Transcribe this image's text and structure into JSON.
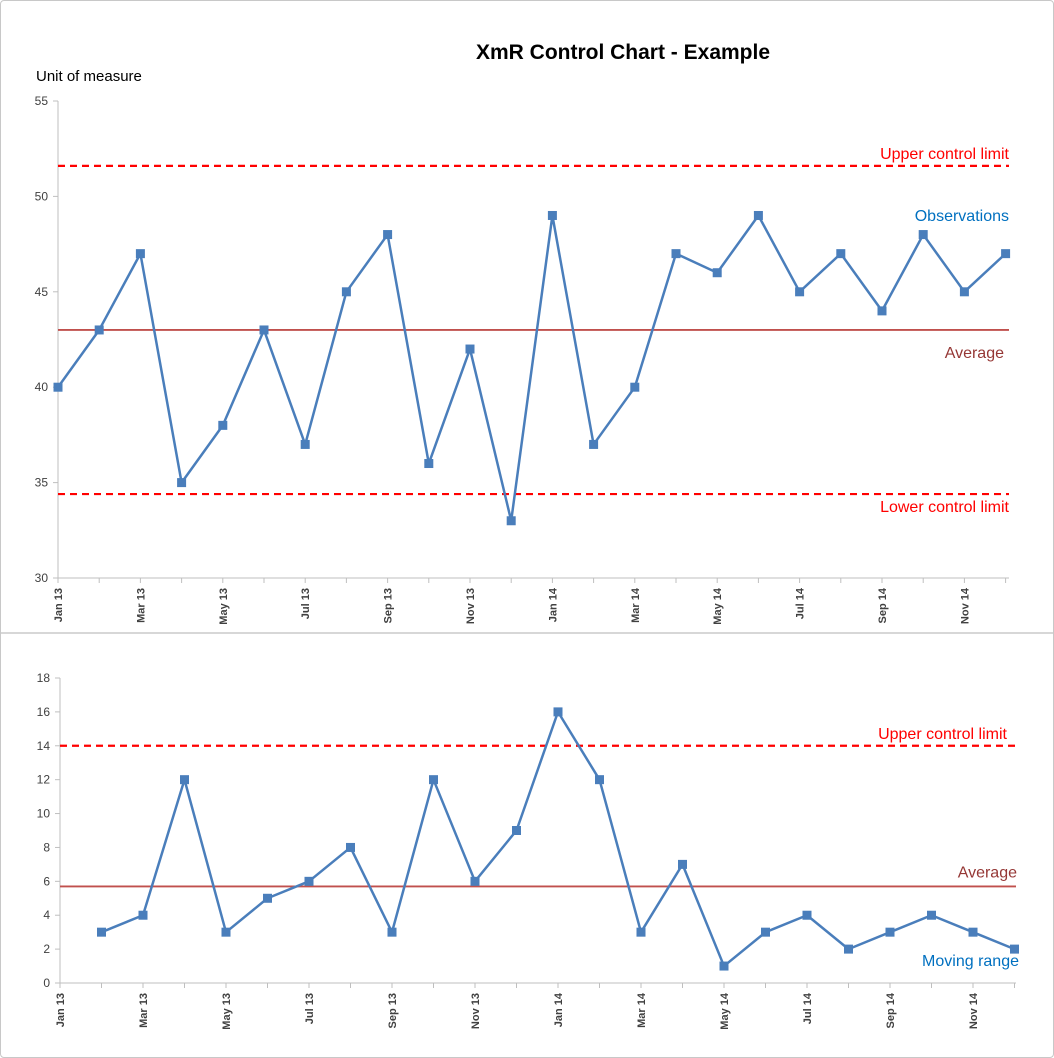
{
  "chart": {
    "title": "XmR Control Chart - Example",
    "unit_label": "Unit of measure"
  },
  "colors": {
    "series": "#4a7ebb",
    "limit": "#ff0000",
    "average": "#c0504d",
    "average_label": "#953735",
    "observation_label": "#0070c0",
    "divider": "#bfbfbf",
    "axis": "#bfbfbf"
  },
  "chart_data": [
    {
      "type": "line",
      "title": "XmR Control Chart - Example",
      "ylabel": "Unit of measure",
      "xlabel": "",
      "categories": [
        "Jan 13",
        "Feb 13",
        "Mar 13",
        "Apr 13",
        "May 13",
        "Jun 13",
        "Jul 13",
        "Aug 13",
        "Sep 13",
        "Oct 13",
        "Nov 13",
        "Dec 13",
        "Jan 14",
        "Feb 14",
        "Mar 14",
        "Apr 14",
        "May 14",
        "Jun 14",
        "Jul 14",
        "Aug 14",
        "Sep 14",
        "Oct 14",
        "Nov 14",
        "Dec 14"
      ],
      "tick_labels": [
        "Jan 13",
        "",
        "Mar 13",
        "",
        "May 13",
        "",
        "Jul 13",
        "",
        "Sep 13",
        "",
        "Nov 13",
        "",
        "Jan 14",
        "",
        "Mar 14",
        "",
        "May 14",
        "",
        "Jul 14",
        "",
        "Sep 14",
        "",
        "Nov 14",
        ""
      ],
      "series": [
        {
          "name": "Observations",
          "values": [
            40,
            43,
            47,
            35,
            38,
            43,
            37,
            45,
            48,
            36,
            42,
            33,
            49,
            37,
            40,
            47,
            46,
            49,
            45,
            47,
            44,
            48,
            45,
            47
          ]
        }
      ],
      "reference_lines": [
        {
          "name": "Upper control limit",
          "value": 51.6,
          "style": "dashed"
        },
        {
          "name": "Average",
          "value": 43.0,
          "style": "solid"
        },
        {
          "name": "Lower control limit",
          "value": 34.4,
          "style": "dashed"
        }
      ],
      "ylim": [
        30,
        55
      ],
      "yticks": [
        30,
        35,
        40,
        45,
        50,
        55
      ],
      "grid": false
    },
    {
      "type": "line",
      "title": "",
      "ylabel": "",
      "xlabel": "",
      "categories": [
        "Jan 13",
        "Feb 13",
        "Mar 13",
        "Apr 13",
        "May 13",
        "Jun 13",
        "Jul 13",
        "Aug 13",
        "Sep 13",
        "Oct 13",
        "Nov 13",
        "Dec 13",
        "Jan 14",
        "Feb 14",
        "Mar 14",
        "Apr 14",
        "May 14",
        "Jun 14",
        "Jul 14",
        "Aug 14",
        "Sep 14",
        "Oct 14",
        "Nov 14",
        "Dec 14"
      ],
      "tick_labels": [
        "Jan 13",
        "",
        "Mar 13",
        "",
        "May 13",
        "",
        "Jul 13",
        "",
        "Sep 13",
        "",
        "Nov 13",
        "",
        "Jan 14",
        "",
        "Mar 14",
        "",
        "May 14",
        "",
        "Jul 14",
        "",
        "Sep 14",
        "",
        "Nov 14",
        ""
      ],
      "series": [
        {
          "name": "Moving range",
          "values": [
            null,
            3,
            4,
            12,
            3,
            5,
            6,
            8,
            3,
            12,
            6,
            9,
            16,
            12,
            3,
            7,
            1,
            3,
            4,
            2,
            3,
            4,
            3,
            2
          ]
        }
      ],
      "reference_lines": [
        {
          "name": "Upper control limit",
          "value": 14.0,
          "style": "dashed"
        },
        {
          "name": "Average",
          "value": 5.7,
          "style": "solid"
        }
      ],
      "ylim": [
        0,
        18
      ],
      "yticks": [
        0,
        2,
        4,
        6,
        8,
        10,
        12,
        14,
        16,
        18
      ],
      "grid": false
    }
  ]
}
